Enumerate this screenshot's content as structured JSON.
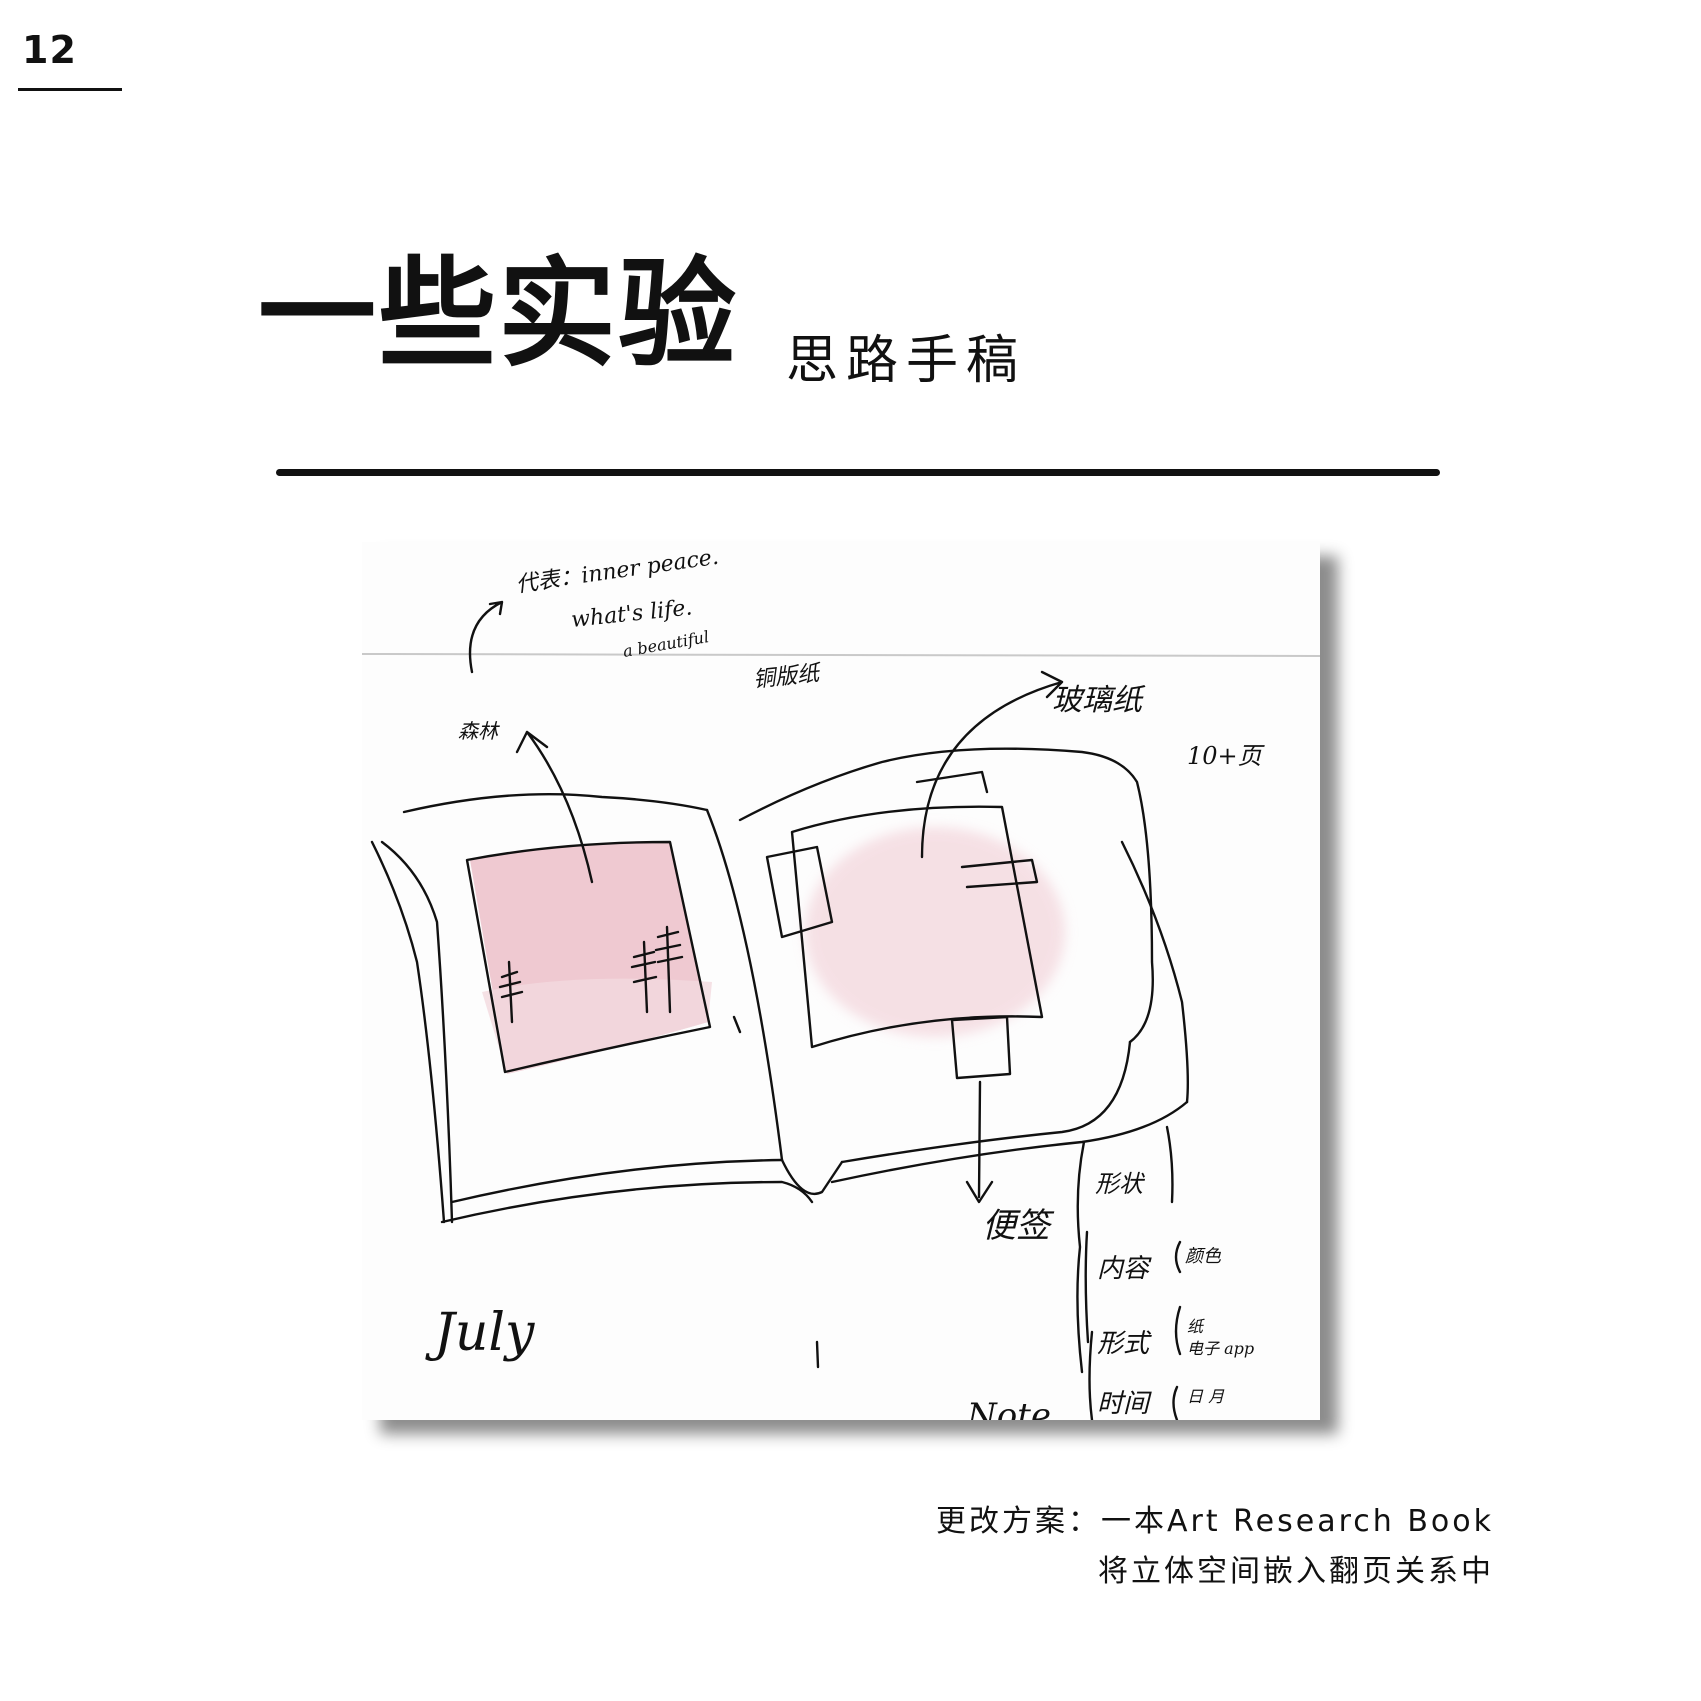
{
  "page": {
    "number": "12"
  },
  "header": {
    "title": "一些实验",
    "subtitle": "思路手稿"
  },
  "sketch": {
    "notes": {
      "represents": "代表：inner peace.",
      "whats_life": "what's life.",
      "a_beautiful": "a beautiful",
      "copperplate_paper": "铜版纸",
      "glass_paper": "玻璃纸",
      "pages_count": "10+页",
      "forest": "森林",
      "sticky_note": "便签",
      "shape": "形状",
      "content": "内容",
      "color": "颜色",
      "form": "形式",
      "paper": "纸",
      "electronic_app": "电子 app",
      "time": "时间",
      "day_month": "日 月",
      "july": "July",
      "note": "Note"
    },
    "colors": {
      "pink_wash": "#e9b7c1",
      "light_pink": "#f3d9df",
      "ink": "#111111"
    }
  },
  "caption": {
    "line1": "更改方案：一本Art Research Book",
    "line2": "将立体空间嵌入翻页关系中"
  }
}
